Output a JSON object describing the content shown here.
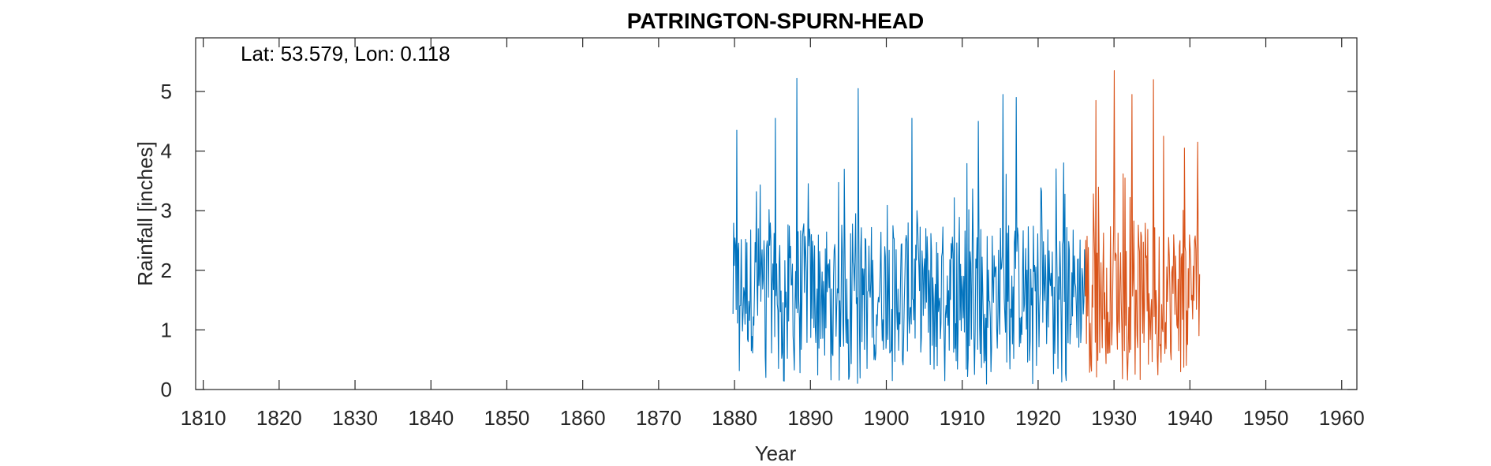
{
  "chart_data": {
    "type": "line",
    "title": "PATRINGTON-SPURN-HEAD",
    "xlabel": "Year",
    "ylabel": "Rainfall [inches]",
    "annotation": "Lat: 53.579, Lon: 0.118",
    "xlim": [
      1809,
      1962
    ],
    "ylim": [
      0,
      5.9
    ],
    "xticks": [
      1810,
      1820,
      1830,
      1840,
      1850,
      1860,
      1870,
      1880,
      1890,
      1900,
      1910,
      1920,
      1930,
      1940,
      1950,
      1960
    ],
    "yticks": [
      0,
      1,
      2,
      3,
      4,
      5
    ],
    "grid": false,
    "box": true,
    "series": [
      {
        "color": "#0072BD",
        "x_start": 1879.8,
        "x_end": 1926.2,
        "step": 0.0833,
        "y_min": 0.08,
        "y_max": 5.22,
        "peaks": [
          [
            1880.3,
            4.35
          ],
          [
            1885.4,
            4.55
          ],
          [
            1888.2,
            5.22
          ],
          [
            1896.3,
            5.05
          ],
          [
            1903.4,
            4.55
          ],
          [
            1912.1,
            4.5
          ],
          [
            1915.4,
            4.95
          ],
          [
            1917.1,
            4.9
          ]
        ]
      },
      {
        "color": "#D95319",
        "x_start": 1926.2,
        "x_end": 1941.3,
        "step": 0.0833,
        "y_min": 0.15,
        "y_max": 5.35,
        "peaks": [
          [
            1927.6,
            4.85
          ],
          [
            1930.0,
            5.35
          ],
          [
            1932.4,
            4.95
          ],
          [
            1935.2,
            5.2
          ],
          [
            1936.5,
            4.25
          ],
          [
            1939.3,
            4.05
          ],
          [
            1941.0,
            4.15
          ]
        ]
      }
    ]
  }
}
